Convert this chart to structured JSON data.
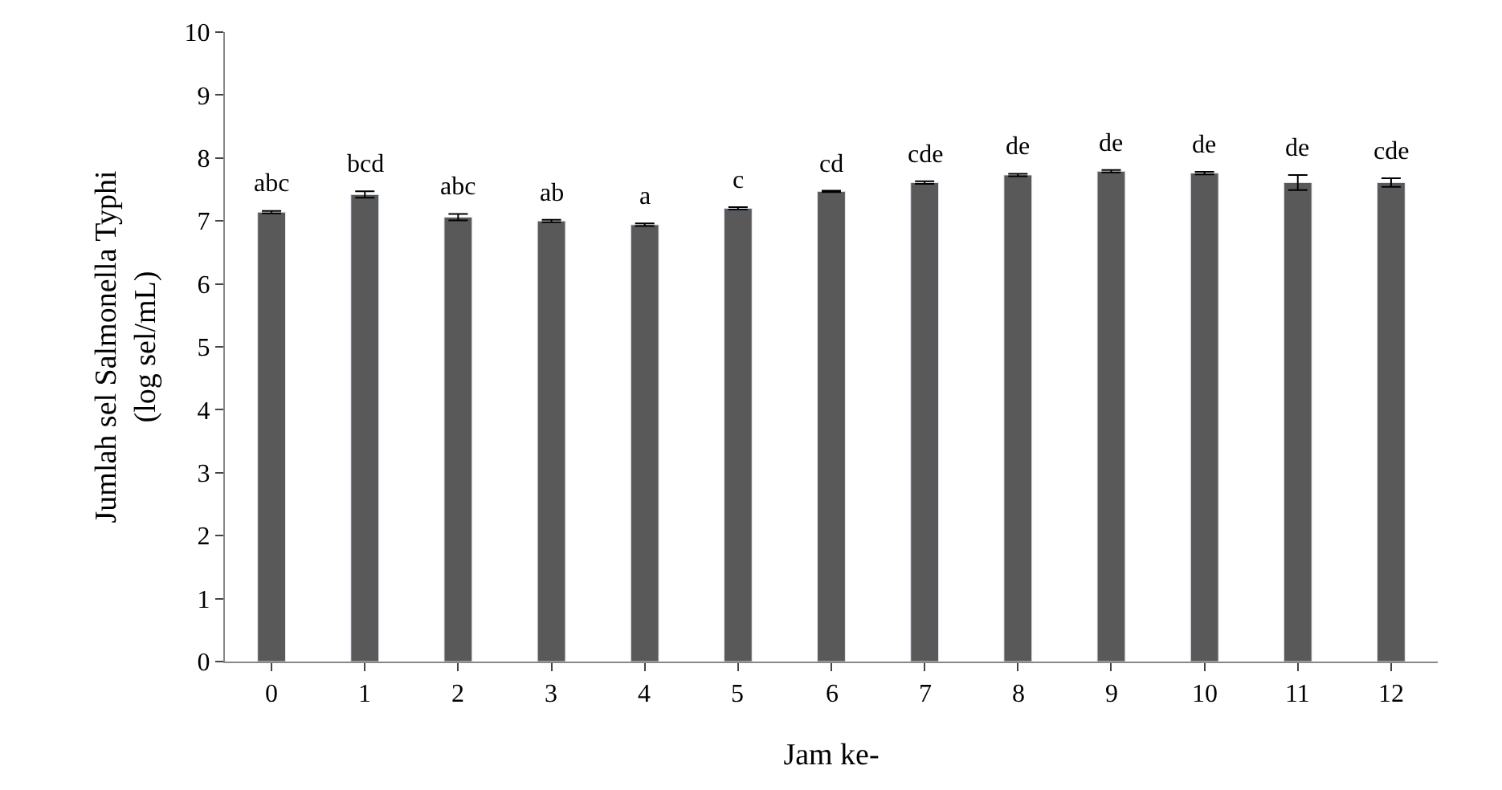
{
  "chart_data": {
    "type": "bar",
    "xlabel": "Jam ke-",
    "ylabel": "Jumlah sel Salmonella Typhi\n(log sel/mL)",
    "categories": [
      "0",
      "1",
      "2",
      "3",
      "4",
      "5",
      "6",
      "7",
      "8",
      "9",
      "10",
      "11",
      "12"
    ],
    "values": [
      7.14,
      7.42,
      7.06,
      7.0,
      6.94,
      7.2,
      7.47,
      7.61,
      7.73,
      7.79,
      7.76,
      7.61,
      7.61
    ],
    "errors": [
      0.02,
      0.05,
      0.05,
      0.02,
      0.02,
      0.02,
      0.01,
      0.02,
      0.02,
      0.02,
      0.02,
      0.12,
      0.07
    ],
    "color": "#595959",
    "ylim": [
      0,
      10
    ],
    "yticks": [
      0,
      1,
      2,
      3,
      4,
      5,
      6,
      7,
      8,
      9,
      10
    ],
    "annotations": [
      {
        "text": "abc",
        "x": "0",
        "y": 7.16
      },
      {
        "text": "bcd",
        "x": "1",
        "y": 7.47
      },
      {
        "text": "abc",
        "x": "2",
        "y": 7.11
      },
      {
        "text": "ab",
        "x": "3",
        "y": 7.02
      },
      {
        "text": "a",
        "x": "4",
        "y": 6.96
      },
      {
        "text": "c",
        "x": "5",
        "y": 7.22
      },
      {
        "text": "cd",
        "x": "6",
        "y": 7.48
      },
      {
        "text": "cde",
        "x": "7",
        "y": 7.63
      },
      {
        "text": "de",
        "x": "8",
        "y": 7.75
      },
      {
        "text": "de",
        "x": "9",
        "y": 7.81
      },
      {
        "text": "de",
        "x": "10",
        "y": 7.78
      },
      {
        "text": "de",
        "x": "11",
        "y": 7.73
      },
      {
        "text": "cde",
        "x": "12",
        "y": 7.68
      }
    ]
  }
}
